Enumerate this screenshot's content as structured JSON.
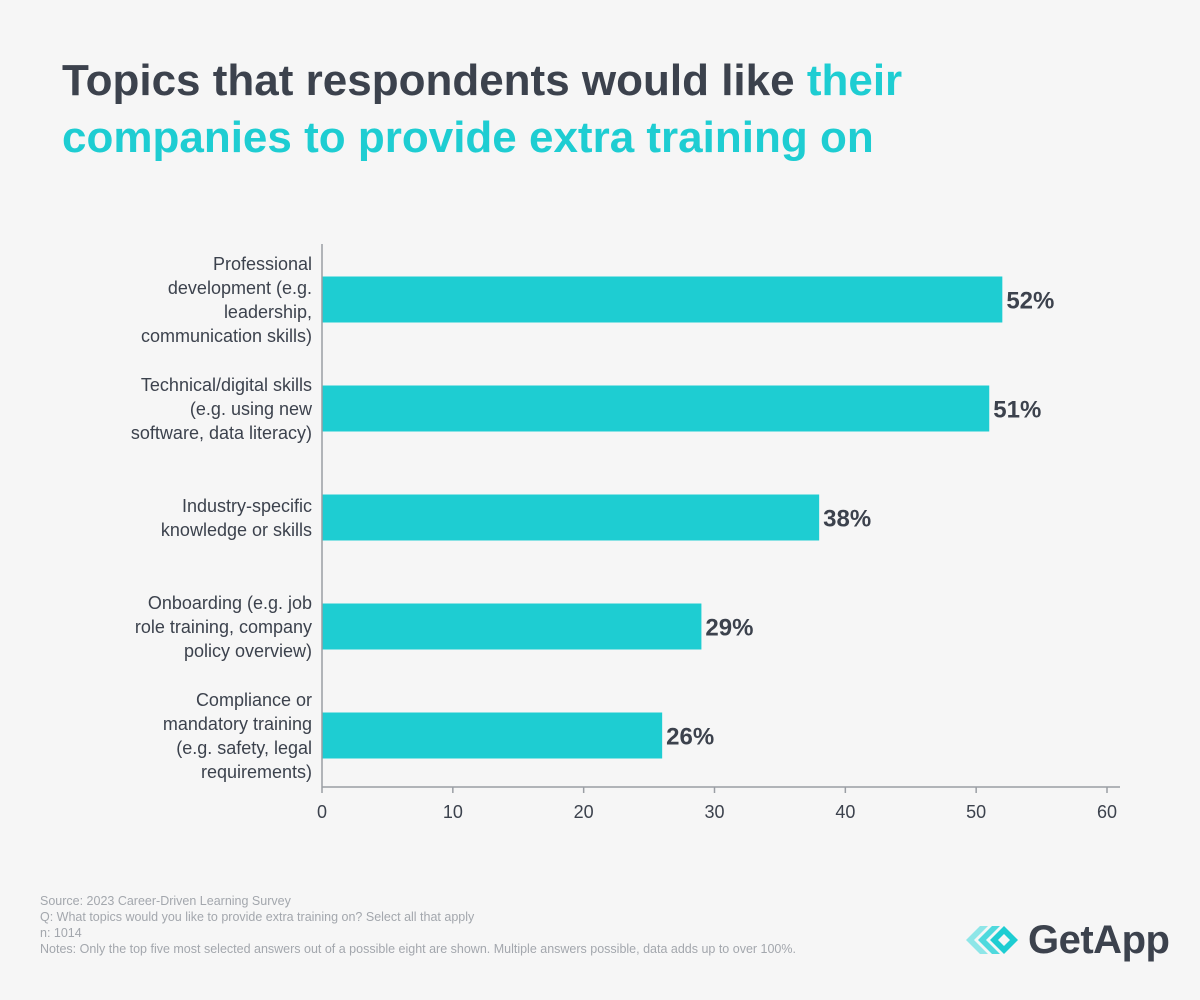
{
  "title": {
    "part1": "Topics that respondents would like ",
    "part2": "their companies to provide extra training on"
  },
  "colors": {
    "bar": "#1ecdd2",
    "text": "#3c424d",
    "axis": "#9a9ea4",
    "footer": "#a3a7ad"
  },
  "chart_data": {
    "type": "bar",
    "orientation": "horizontal",
    "categories": [
      "Professional development (e.g. leadership, communication skills)",
      "Technical/digital skills (e.g. using new software, data literacy)",
      "Industry-specific knowledge or skills",
      "Onboarding (e.g. job role training, company policy overview)",
      "Compliance or mandatory training (e.g. safety, legal requirements)"
    ],
    "category_lines": [
      [
        "Professional",
        "development (e.g.",
        "leadership,",
        "communication skills)"
      ],
      [
        "Technical/digital skills",
        "(e.g. using new",
        "software, data literacy)"
      ],
      [
        "Industry-specific",
        "knowledge or skills"
      ],
      [
        "Onboarding (e.g. job",
        "role training, company",
        "policy overview)"
      ],
      [
        "Compliance or",
        "mandatory training",
        "(e.g. safety, legal",
        "requirements)"
      ]
    ],
    "values": [
      52,
      51,
      38,
      29,
      26
    ],
    "value_labels": [
      "52%",
      "51%",
      "38%",
      "29%",
      "26%"
    ],
    "xlim": [
      0,
      60
    ],
    "xticks": [
      "0",
      "10",
      "20",
      "30",
      "40",
      "50",
      "60"
    ],
    "title": "Topics that respondents would like their companies to provide extra training on",
    "xlabel": "",
    "ylabel": "",
    "grid": false
  },
  "footer": {
    "source": "Source: 2023 Career-Driven Learning Survey",
    "question": "Q: What topics would you like to provide extra training on? Select all that apply",
    "n": "n: 1014",
    "notes": "Notes: Only the top five most selected answers out of a possible eight are shown. Multiple answers possible, data adds up to over 100%."
  },
  "logo": {
    "text": "GetApp",
    "icon": "getapp-chevrons-icon"
  }
}
